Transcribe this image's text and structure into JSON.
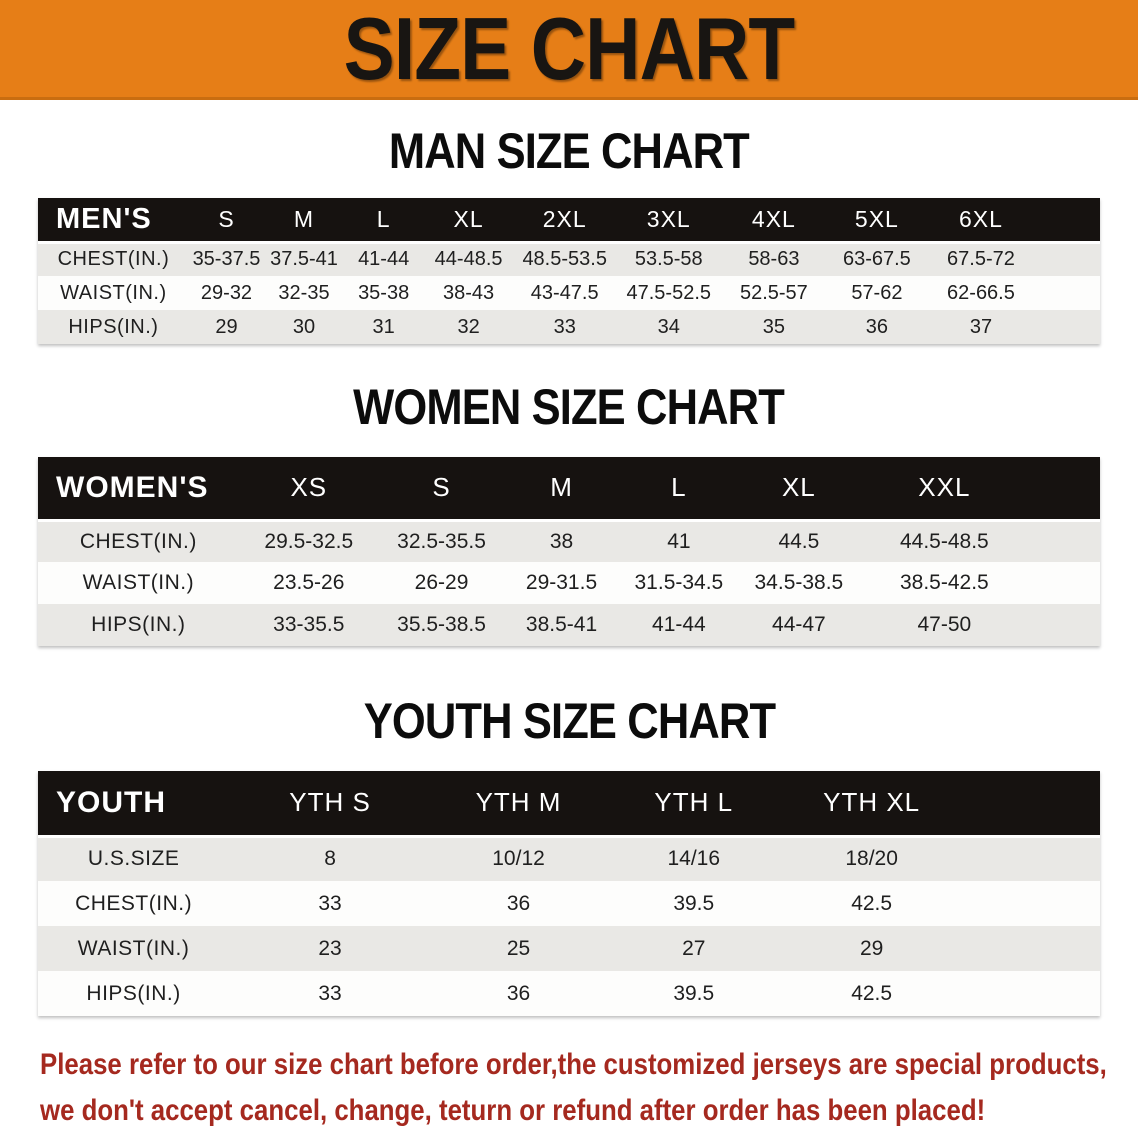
{
  "banner": {
    "title": "SIZE CHART"
  },
  "sections": [
    {
      "id": "men",
      "title": "MAN SIZE CHART",
      "table": {
        "header": [
          "MEN'S",
          "S",
          "M",
          "L",
          "XL",
          "2XL",
          "3XL",
          "4XL",
          "5XL",
          "6XL"
        ],
        "rows": [
          [
            "CHEST(IN.)",
            "35-37.5",
            "37.5-41",
            "41-44",
            "44-48.5",
            "48.5-53.5",
            "53.5-58",
            "58-63",
            "63-67.5",
            "67.5-72"
          ],
          [
            "WAIST(IN.)",
            "29-32",
            "32-35",
            "35-38",
            "38-43",
            "43-47.5",
            "47.5-52.5",
            "52.5-57",
            "57-62",
            "62-66.5"
          ],
          [
            "HIPS(IN.)",
            "29",
            "30",
            "31",
            "32",
            "33",
            "34",
            "35",
            "36",
            "37"
          ]
        ]
      }
    },
    {
      "id": "women",
      "title": "WOMEN SIZE CHART",
      "table": {
        "header": [
          "WOMEN'S",
          "XS",
          "S",
          "M",
          "L",
          "XL",
          "XXL"
        ],
        "rows": [
          [
            "CHEST(IN.)",
            "29.5-32.5",
            "32.5-35.5",
            "38",
            "41",
            "44.5",
            "44.5-48.5"
          ],
          [
            "WAIST(IN.)",
            "23.5-26",
            "26-29",
            "29-31.5",
            "31.5-34.5",
            "34.5-38.5",
            "38.5-42.5"
          ],
          [
            "HIPS(IN.)",
            "33-35.5",
            "35.5-38.5",
            "38.5-41",
            "41-44",
            "44-47",
            "47-50"
          ]
        ]
      }
    },
    {
      "id": "youth",
      "title": "YOUTH SIZE CHART",
      "table": {
        "header": [
          "YOUTH",
          "YTH S",
          "YTH M",
          "YTH L",
          "YTH XL"
        ],
        "rows": [
          [
            "U.S.SIZE",
            "8",
            "10/12",
            "14/16",
            "18/20"
          ],
          [
            "CHEST(IN.)",
            "33",
            "36",
            "39.5",
            "42.5"
          ],
          [
            "WAIST(IN.)",
            "23",
            "25",
            "27",
            "29"
          ],
          [
            "HIPS(IN.)",
            "33",
            "36",
            "39.5",
            "42.5"
          ]
        ]
      }
    }
  ],
  "footer": {
    "lines": [
      "Please refer to our size chart before order,the customized jerseys are special products,",
      "we don't accept cancel, change, teturn or refund after order has been placed!"
    ]
  },
  "colors": {
    "banner_bg": "#e67e17",
    "banner_border": "#c96d10",
    "banner_text": "#181512",
    "title_text": "#0c0c0c",
    "table_header_bg": "#161210",
    "table_header_text": "#ffffff",
    "row_stripe": "#e9e8e5",
    "row_white": "#fdfdfc",
    "cell_text": "#1f1f1f",
    "footer_text": "#a5291f"
  }
}
